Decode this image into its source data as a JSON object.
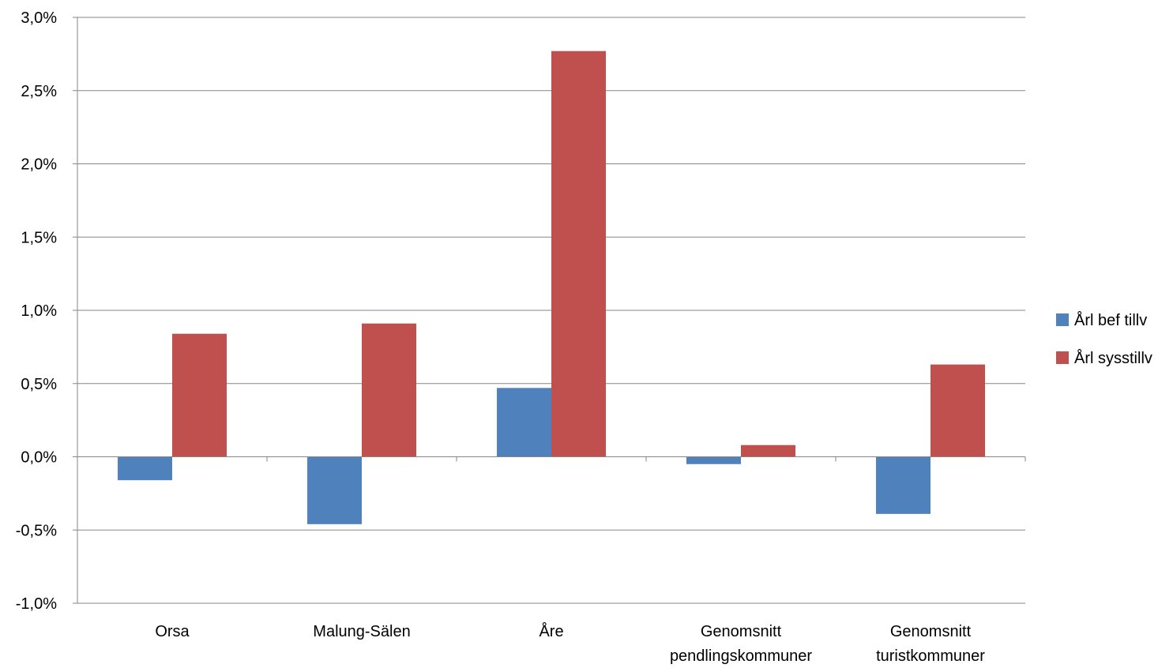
{
  "chart_data": {
    "type": "bar",
    "title": "",
    "xlabel": "",
    "ylabel": "",
    "categories": [
      [
        "Orsa"
      ],
      [
        "Malung-Sälen"
      ],
      [
        "Åre"
      ],
      [
        "Genomsnitt",
        "pendlingskommuner"
      ],
      [
        "Genomsnitt",
        "turistkommuner"
      ]
    ],
    "series": [
      {
        "name": "Årl bef tillv",
        "color": "#4F81BD",
        "values": [
          -0.16,
          -0.46,
          0.47,
          -0.05,
          -0.39
        ]
      },
      {
        "name": "Årl sysstillv",
        "color": "#C0504D",
        "values": [
          0.84,
          0.91,
          2.77,
          0.08,
          0.63
        ]
      }
    ],
    "ylim": [
      -1.0,
      3.0
    ],
    "yticks": [
      3.0,
      2.5,
      2.0,
      1.5,
      1.0,
      0.5,
      0.0,
      -0.5,
      -1.0
    ],
    "ytick_labels": [
      "3,0%",
      "2,5%",
      "2,0%",
      "1,5%",
      "1,0%",
      "0,5%",
      "0,0%",
      "-0,5%",
      "-1,0%"
    ],
    "grid": true,
    "legend_position": "right"
  }
}
